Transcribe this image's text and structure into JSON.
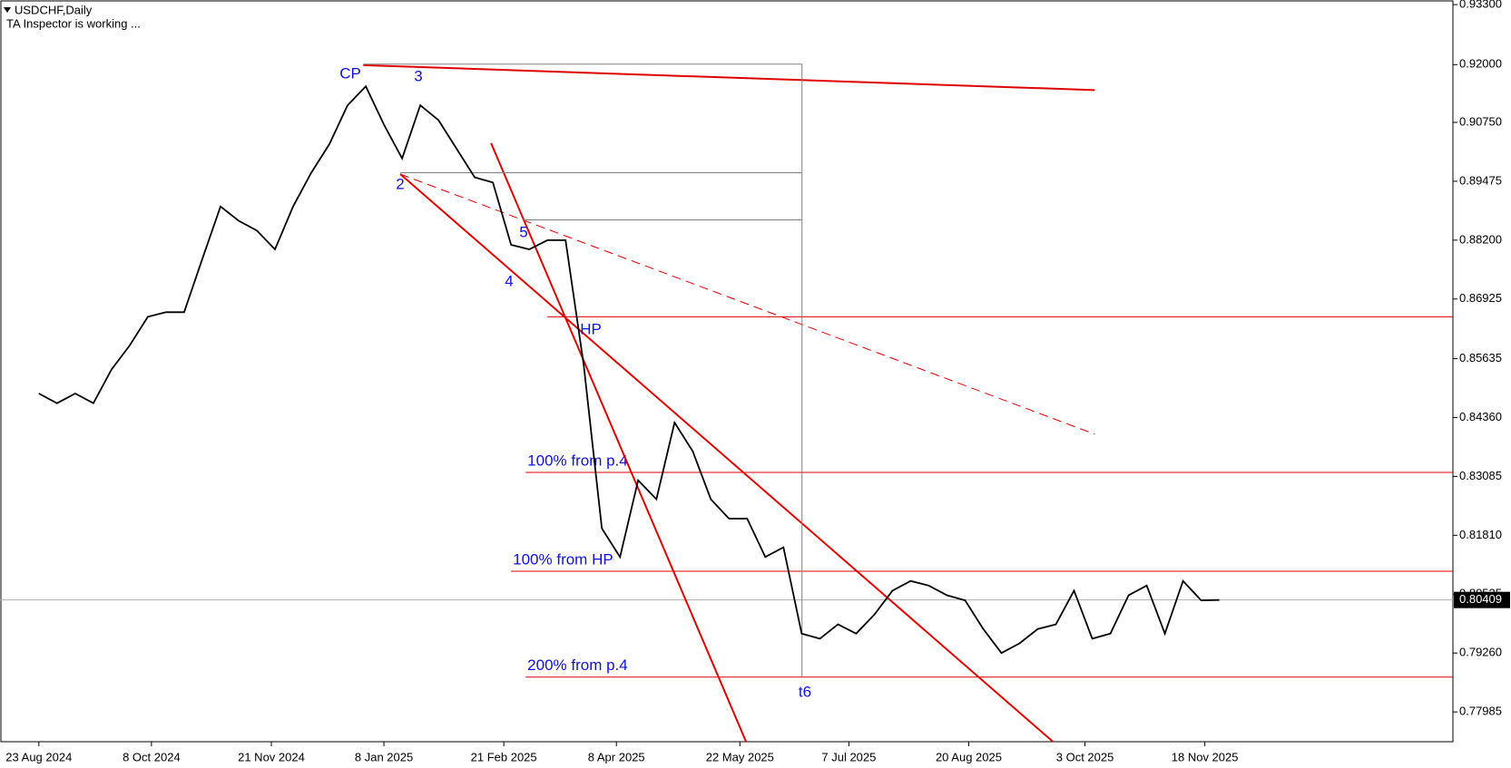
{
  "chart_data": {
    "type": "line",
    "title": "USDCHF,Daily",
    "subtitle": "TA Inspector is working ...",
    "color": "#000000",
    "x": [
      0,
      5,
      10,
      15,
      20,
      25,
      30,
      35,
      40,
      45,
      50,
      55,
      60,
      65,
      70,
      75,
      80,
      85,
      90,
      95,
      100,
      105,
      110,
      115,
      120,
      125,
      130,
      135,
      140,
      145,
      150,
      155,
      160,
      165,
      170,
      175,
      180,
      185,
      190,
      195,
      200,
      205,
      210,
      215,
      220,
      225,
      230,
      235,
      240,
      245,
      250,
      255,
      260,
      265,
      270,
      275,
      280,
      285,
      290,
      295,
      300,
      305,
      310,
      315,
      320,
      325
    ],
    "values": [
      0.8488,
      0.8467,
      0.8488,
      0.8467,
      0.854,
      0.8592,
      0.8654,
      0.8664,
      0.8664,
      0.8779,
      0.8893,
      0.8862,
      0.8841,
      0.88,
      0.8893,
      0.8966,
      0.9028,
      0.9112,
      0.9153,
      0.907,
      0.8997,
      0.9112,
      0.908,
      0.9018,
      0.8956,
      0.8945,
      0.881,
      0.88,
      0.882,
      0.882,
      0.855,
      0.8196,
      0.8134,
      0.83,
      0.8259,
      0.8425,
      0.8363,
      0.8259,
      0.8217,
      0.8217,
      0.8134,
      0.8155,
      0.7968,
      0.7957,
      0.7988,
      0.7968,
      0.8009,
      0.8061,
      0.8082,
      0.8072,
      0.8051,
      0.804,
      0.7978,
      0.7926,
      0.7947,
      0.7978,
      0.7988,
      0.8061,
      0.7957,
      0.7968,
      0.8051,
      0.8072,
      0.7968,
      0.8082,
      0.804,
      0.80409
    ],
    "xlim": [
      -10.7,
      389.3
    ],
    "xticks": [
      {
        "value": 0,
        "label": "23 Aug 2024"
      },
      {
        "value": 31,
        "label": "8 Oct 2024"
      },
      {
        "value": 64,
        "label": "21 Nov 2024"
      },
      {
        "value": 95,
        "label": "8 Jan 2025"
      },
      {
        "value": 128,
        "label": "21 Feb 2025"
      },
      {
        "value": 159,
        "label": "8 Apr 2025"
      },
      {
        "value": 193,
        "label": "22 May 2025"
      },
      {
        "value": 223,
        "label": "7 Jul 2025"
      },
      {
        "value": 256,
        "label": "20 Aug 2025"
      },
      {
        "value": 288,
        "label": "3 Oct 2025"
      },
      {
        "value": 321,
        "label": "18 Nov 2025"
      }
    ],
    "ylim": [
      0.7734,
      0.934
    ],
    "yticks": [
      {
        "value": 0.933,
        "label": "0.93300"
      },
      {
        "value": 0.92,
        "label": "0.92000"
      },
      {
        "value": 0.9075,
        "label": "0.90750"
      },
      {
        "value": 0.89475,
        "label": "0.89475"
      },
      {
        "value": 0.882,
        "label": "0.88200"
      },
      {
        "value": 0.86925,
        "label": "0.86925"
      },
      {
        "value": 0.85635,
        "label": "0.85635"
      },
      {
        "value": 0.8436,
        "label": "0.84360"
      },
      {
        "value": 0.83085,
        "label": "0.83085"
      },
      {
        "value": 0.8181,
        "label": "0.81810"
      },
      {
        "value": 0.80535,
        "label": "0.80535"
      },
      {
        "value": 0.7926,
        "label": "0.79260"
      },
      {
        "value": 0.77985,
        "label": "0.77985"
      }
    ],
    "current_price": {
      "value": 0.80409,
      "label": "0.80409"
    },
    "levels": [
      {
        "value": 0.8654,
        "from": 140,
        "text": null
      },
      {
        "value": 0.8317,
        "from": 134,
        "text": "100% from p.4"
      },
      {
        "value": 0.8103,
        "from": 130,
        "text": "100% from HP"
      },
      {
        "value": 0.7874,
        "from": 134,
        "text": "200% from p.4"
      }
    ],
    "lines": [
      {
        "x": [
          89.3,
          290.7
        ],
        "y": [
          0.9199,
          0.9145
        ],
        "color": "#e00000",
        "dashed": false
      },
      {
        "x": [
          99.5,
          279.2
        ],
        "y": [
          0.8963,
          0.7734
        ],
        "color": "#e00000",
        "dashed": false
      },
      {
        "x": [
          124.5,
          194.7
        ],
        "y": [
          0.903,
          0.7734
        ],
        "color": "#e00000",
        "dashed": false
      },
      {
        "x": [
          99.5,
          290.7
        ],
        "y": [
          0.8963,
          0.84
        ],
        "color": "#e00000",
        "dashed": true
      },
      {
        "x": [
          89.3,
          210.1
        ],
        "y": [
          0.9201,
          0.9201
        ],
        "color": "#808080",
        "dashed": false
      },
      {
        "x": [
          99.5,
          210.1
        ],
        "y": [
          0.8966,
          0.8966
        ],
        "color": "#808080",
        "dashed": false
      },
      {
        "x": [
          133.3,
          210.1
        ],
        "y": [
          0.8864,
          0.8864
        ],
        "color": "#808080",
        "dashed": false
      },
      {
        "x": [
          210.1,
          210.1
        ],
        "y": [
          0.9201,
          0.7874
        ],
        "color": "#808080",
        "dashed": false
      }
    ],
    "wave_labels": [
      "CP",
      "3",
      "2",
      "4",
      "5",
      "HP",
      "t6"
    ]
  }
}
